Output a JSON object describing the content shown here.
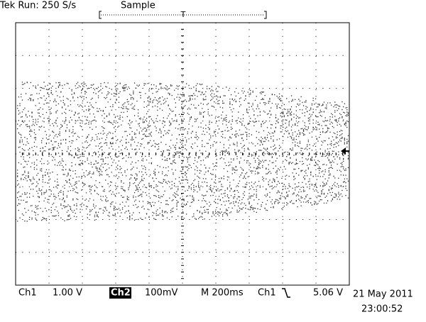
{
  "header": {
    "status": "Tek Run: 250 S/s",
    "mode": "Sample",
    "trigger_marker": "T"
  },
  "readout": {
    "ch1_label": "Ch1",
    "ch1_scale": "1.00 V",
    "ch2_label": "Ch2",
    "ch2_scale": "100mV",
    "timebase": "M 200ms",
    "trigger_source": "Ch1",
    "trigger_level": "5.06 V"
  },
  "timestamp": {
    "date": "21 May 2011",
    "time": "23:00:52"
  }
}
